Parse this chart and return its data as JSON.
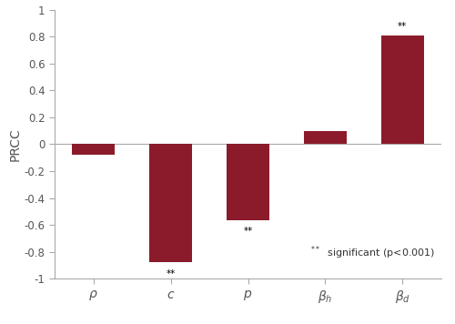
{
  "categories": [
    "ρ",
    "c",
    "p",
    "β_h",
    "β_d"
  ],
  "values": [
    -0.08,
    -0.88,
    -0.565,
    0.1,
    0.81
  ],
  "bar_color": "#8B1A2A",
  "ylabel": "PRCC",
  "ylim": [
    -1,
    1
  ],
  "yticks": [
    -1,
    -0.8,
    -0.6,
    -0.4,
    -0.2,
    0,
    0.2,
    0.4,
    0.6,
    0.8,
    1
  ],
  "ytick_labels": [
    "-1",
    "-0.8",
    "-0.6",
    "-0.4",
    "-0.2",
    "0",
    "0.2",
    "0.4",
    "0.6",
    "0.8",
    "1"
  ],
  "significant": [
    false,
    true,
    true,
    false,
    true
  ],
  "star_symbol": "**",
  "background_color": "#ffffff",
  "bar_width": 0.55,
  "figsize": [
    5.0,
    3.56
  ],
  "dpi": 100
}
